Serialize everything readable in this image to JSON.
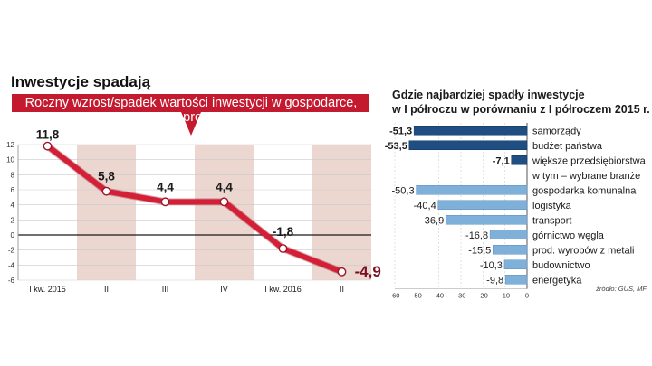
{
  "title": "Inwestycje spadają",
  "colors": {
    "banner": "#c41a2f",
    "line": "#d41f36",
    "band": "#ecd6d0",
    "dark_bar": "#1f4e83",
    "light_bar": "#7fb0da",
    "last_label": "#7a0f22"
  },
  "chart_data": [
    {
      "type": "line",
      "title": "Roczny wzrost/spadek wartości inwestycji w gospodarce, w proc.",
      "title_lines": [
        "Roczny wzrost/spadek wartości inwestycji w gospodarce,",
        "w proc."
      ],
      "categories": [
        "I kw. 2015",
        "II",
        "III",
        "IV",
        "I kw. 2016",
        "II"
      ],
      "values": [
        11.8,
        5.8,
        4.4,
        4.4,
        -1.8,
        -4.9
      ],
      "value_labels": [
        "11,8",
        "5,8",
        "4,4",
        "4,4",
        "-1,8",
        "-4,9"
      ],
      "ylim": [
        -6,
        12
      ],
      "yticks": [
        12,
        10,
        8,
        6,
        4,
        2,
        0,
        -2,
        -4,
        -6
      ],
      "grid": true
    },
    {
      "type": "bar",
      "orientation": "horizontal",
      "title": "Gdzie najbardziej spadły inwestycje w I półroczu w porównaniu z I półroczem 2015 r.",
      "title_lines": [
        "Gdzie najbardziej spadły inwestycje",
        "w I półroczu w porównaniu z I półroczem 2015 r."
      ],
      "categories": [
        "samorządy",
        "budżet państwa",
        "większe przedsiębiorstwa",
        "w tym – wybrane branże",
        "gospodarka komunalna",
        "logistyka",
        "transport",
        "górnictwo węgla",
        "prod. wyrobów z metali",
        "budownictwo",
        "energetyka"
      ],
      "values": [
        -51.3,
        -53.5,
        -7.1,
        null,
        -50.3,
        -40.4,
        -36.9,
        -16.8,
        -15.5,
        -10.3,
        -9.8
      ],
      "value_labels": [
        "-51,3",
        "-53,5",
        "-7,1",
        "",
        "-50,3",
        "-40,4",
        "-36,9",
        "-16,8",
        "-15,5",
        "-10,3",
        "-9,8"
      ],
      "groups": [
        "main",
        "main",
        "main",
        "header",
        "sector",
        "sector",
        "sector",
        "sector",
        "sector",
        "sector",
        "sector"
      ],
      "xlim": [
        -60,
        0
      ],
      "xticks": [
        -60,
        -50,
        -40,
        -30,
        -20,
        -10,
        0
      ],
      "source": "źródło: GUS, MF"
    }
  ]
}
